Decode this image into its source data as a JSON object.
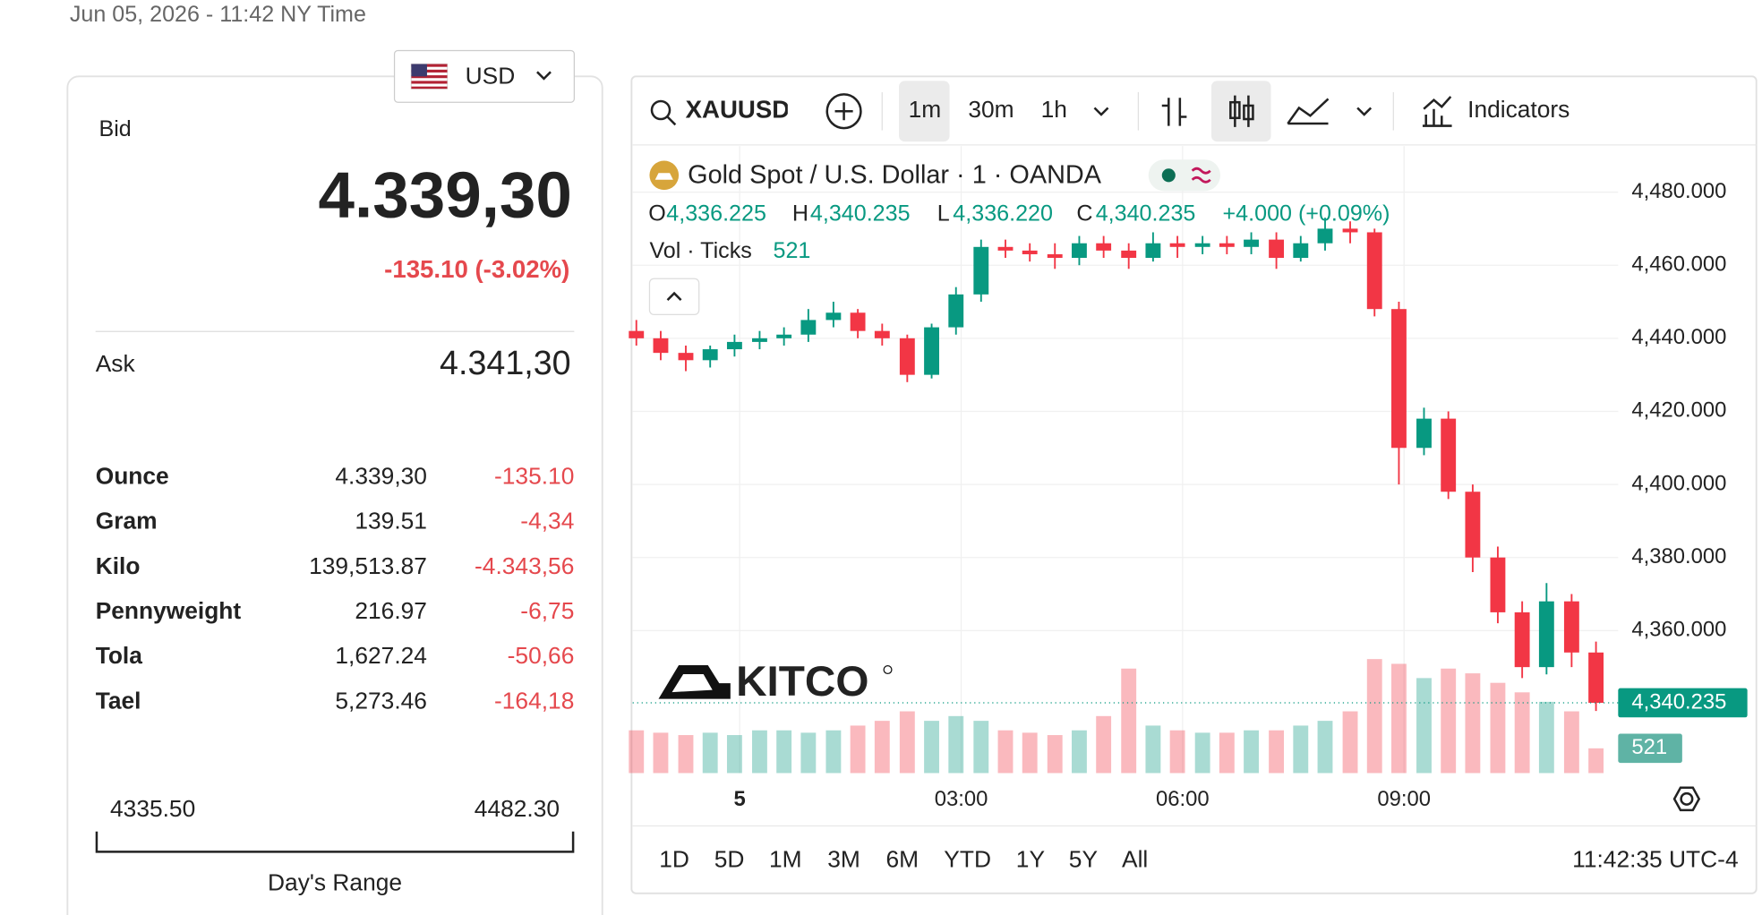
{
  "header": {
    "timestamp": "Jun 05, 2026 - 11:42 NY Time"
  },
  "currency": "USD",
  "quote": {
    "bid_label": "Bid",
    "bid": "4.339,30",
    "change": "-135.10 (-3.02%)",
    "ask_label": "Ask",
    "ask": "4.341,30"
  },
  "units": {
    "rows": [
      {
        "name": "Ounce",
        "price": "4.339,30",
        "change": "-135.10"
      },
      {
        "name": "Gram",
        "price": "139.51",
        "change": "-4,34"
      },
      {
        "name": "Kilo",
        "price": "139,513.87",
        "change": "-4.343,56"
      },
      {
        "name": "Pennyweight",
        "price": "216.97",
        "change": "-6,75"
      },
      {
        "name": "Tola",
        "price": "1,627.24",
        "change": "-50,66"
      },
      {
        "name": "Tael",
        "price": "5,273.46",
        "change": "-164,18"
      }
    ]
  },
  "day_range": {
    "low": "4335.50",
    "high": "4482.30",
    "label": "Day's Range"
  },
  "toolbar": {
    "symbol": "XAUUSD",
    "intervals": [
      "1m",
      "30m",
      "1h"
    ],
    "indicators": "Indicators"
  },
  "legend": {
    "title": "Gold Spot / U.S. Dollar · 1 · OANDA",
    "o_label": "O",
    "o": "4,336.225",
    "h_label": "H",
    "h": "4,340.235",
    "l_label": "L",
    "l": "4,336.220",
    "c_label": "C",
    "c": "4,340.235",
    "change": "+4.000 (+0.09%)",
    "vol_label": "Vol · Ticks",
    "vol": "521"
  },
  "logo": "KITCO",
  "ranges": [
    "1D",
    "5D",
    "1M",
    "3M",
    "6M",
    "YTD",
    "1Y",
    "5Y",
    "All"
  ],
  "clock": "11:42:35 UTC-4",
  "chart_data": {
    "type": "candlestick",
    "x": [
      -1.4,
      -1.07,
      -0.73,
      -0.4,
      -0.07,
      0.27,
      0.6,
      0.93,
      1.27,
      1.6,
      1.93,
      2.27,
      2.6,
      2.93,
      3.27,
      3.6,
      3.93,
      4.27,
      4.6,
      4.93,
      5.27,
      5.6,
      5.93,
      6.27,
      6.6,
      6.93,
      7.27,
      7.6,
      7.93,
      8.27,
      8.6,
      8.93,
      9.27,
      9.6,
      9.93,
      10.27,
      10.6,
      10.93,
      11.27,
      11.6
    ],
    "open": [
      4442,
      4440,
      4436,
      4434,
      4437,
      4439,
      4440,
      4441,
      4445,
      4447,
      4442,
      4440,
      4430,
      4443,
      4452,
      4465,
      4464,
      4463,
      4462,
      4466,
      4464,
      4462,
      4466,
      4465,
      4466,
      4465,
      4467,
      4462,
      4466,
      4470,
      4469,
      4448,
      4410,
      4418,
      4398,
      4380,
      4365,
      4350,
      4368,
      4354
    ],
    "high": [
      4445,
      4442,
      4438,
      4438,
      4441,
      4442,
      4443,
      4448,
      4450,
      4448,
      4444,
      4441,
      4444,
      4454,
      4467,
      4467,
      4466,
      4466,
      4468,
      4468,
      4466,
      4469,
      4468,
      4468,
      4468,
      4469,
      4469,
      4468,
      4473,
      4472,
      4470,
      4450,
      4421,
      4420,
      4400,
      4383,
      4368,
      4373,
      4370,
      4357
    ],
    "low": [
      4438,
      4434,
      4431,
      4432,
      4435,
      4437,
      4438,
      4439,
      4443,
      4440,
      4438,
      4428,
      4429,
      4441,
      4450,
      4462,
      4461,
      4459,
      4460,
      4462,
      4459,
      4461,
      4462,
      4463,
      4463,
      4463,
      4459,
      4461,
      4464,
      4466,
      4446,
      4400,
      4408,
      4396,
      4376,
      4362,
      4347,
      4348,
      4350,
      4338
    ],
    "close": [
      4440,
      4436,
      4434,
      4437,
      4439,
      4440,
      4441,
      4445,
      4447,
      4442,
      4440,
      4430,
      4443,
      4452,
      4465,
      4464,
      4463,
      4462,
      4466,
      4464,
      4462,
      4466,
      4465,
      4466,
      4465,
      4467,
      4462,
      4466,
      4470,
      4469,
      4448,
      4410,
      4418,
      4398,
      4380,
      4365,
      4350,
      4368,
      4354,
      4340.235
    ],
    "close_labels": [
      null,
      null,
      null,
      null,
      null,
      null,
      null,
      null,
      null,
      null,
      null,
      null,
      null,
      null,
      null,
      null,
      null,
      null,
      null,
      null,
      null,
      null,
      null,
      null,
      null,
      null,
      null,
      null,
      null,
      null,
      null,
      null,
      null,
      null,
      null,
      null,
      null,
      null,
      null,
      "4,340.235"
    ],
    "volume": [
      900,
      850,
      800,
      850,
      800,
      900,
      900,
      850,
      900,
      1000,
      1100,
      1300,
      1100,
      1200,
      1100,
      900,
      850,
      800,
      900,
      1200,
      2200,
      1000,
      900,
      850,
      850,
      900,
      900,
      1000,
      1100,
      1300,
      2400,
      2300,
      2000,
      2200,
      2100,
      1900,
      1700,
      1500,
      1300,
      521
    ],
    "up_color": "#089981",
    "down_color": "#f23645",
    "xlim": [
      -1.45,
      11.9
    ],
    "xticks": [
      {
        "value": 0,
        "label": "5"
      },
      {
        "value": 3,
        "label": "03:00"
      },
      {
        "value": 6,
        "label": "06:00"
      },
      {
        "value": 9,
        "label": "09:00"
      }
    ],
    "ylim": [
      4321,
      4492.6
    ],
    "yticks": [
      {
        "value": 4360,
        "label": "4,360.000"
      },
      {
        "value": 4380,
        "label": "4,380.000"
      },
      {
        "value": 4400,
        "label": "4,400.000"
      },
      {
        "value": 4420,
        "label": "4,420.000"
      },
      {
        "value": 4440,
        "label": "4,440.000"
      },
      {
        "value": 4460,
        "label": "4,460.000"
      },
      {
        "value": 4480,
        "label": "4,480.000"
      }
    ],
    "y2lim": [
      0,
      13200
    ],
    "grid": true
  }
}
